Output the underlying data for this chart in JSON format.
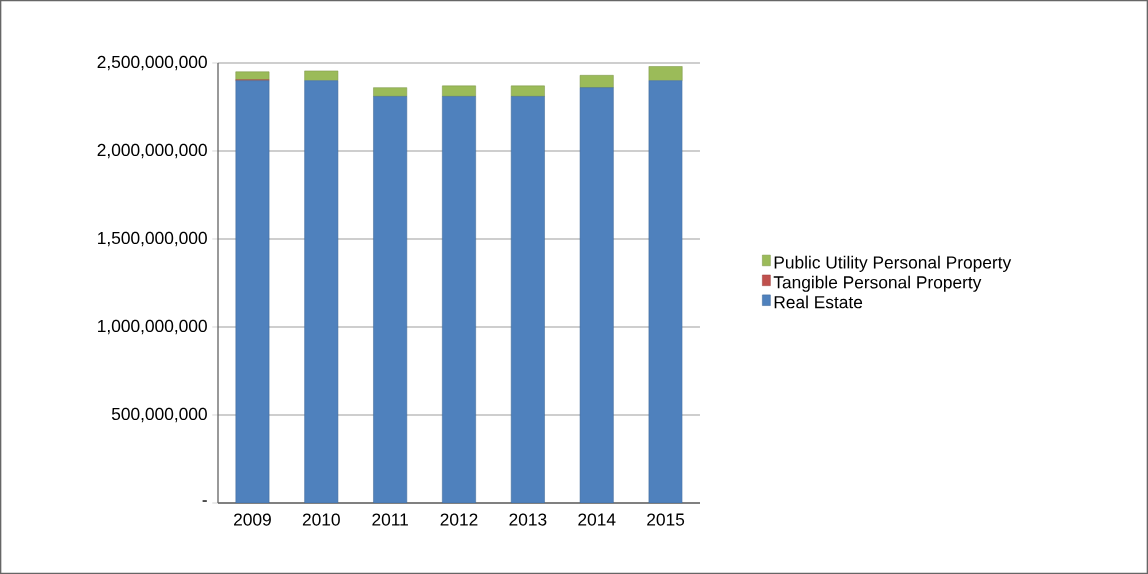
{
  "chart_data": {
    "type": "bar",
    "stacked": true,
    "categories": [
      "2009",
      "2010",
      "2011",
      "2012",
      "2013",
      "2014",
      "2015"
    ],
    "series": [
      {
        "name": "Real Estate",
        "color": "#4f81bd",
        "values": [
          2400000000,
          2400000000,
          2310000000,
          2310000000,
          2310000000,
          2360000000,
          2400000000
        ]
      },
      {
        "name": "Tangible Personal Property",
        "color": "#c0504d",
        "values": [
          5000000,
          0,
          0,
          0,
          0,
          0,
          0
        ]
      },
      {
        "name": "Public Utility Personal Property",
        "color": "#9bbb59",
        "values": [
          45000000,
          55000000,
          50000000,
          60000000,
          60000000,
          70000000,
          80000000
        ]
      }
    ],
    "ylim": [
      0,
      2500000000
    ],
    "yticks": [
      {
        "value": 0,
        "label": "-"
      },
      {
        "value": 500000000,
        "label": "500,000,000"
      },
      {
        "value": 1000000000,
        "label": "1,000,000,000"
      },
      {
        "value": 1500000000,
        "label": "1,500,000,000"
      },
      {
        "value": 2000000000,
        "label": "2,000,000,000"
      },
      {
        "value": 2500000000,
        "label": "2,500,000,000"
      }
    ],
    "grid": "y",
    "legend": "right"
  }
}
